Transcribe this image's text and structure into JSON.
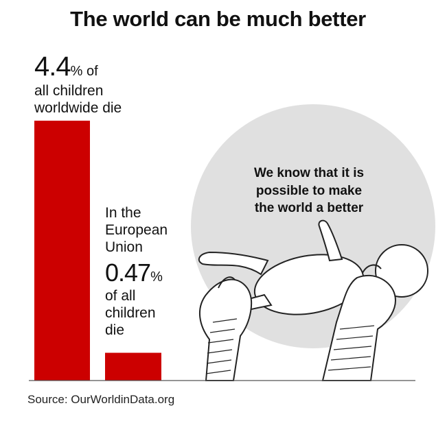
{
  "title": "The world can be much better",
  "source": "Source: OurWorldinData.org",
  "circle_text": [
    "We know that it is",
    "possible to make",
    "the world a better"
  ],
  "colors": {
    "bar": "#cc0000",
    "circle": "#e0e0e0",
    "text": "#111111"
  },
  "chart_data": {
    "type": "bar",
    "categories": [
      "all children worldwide",
      "In the European Union"
    ],
    "values": [
      4.4,
      0.47
    ],
    "unit": "%",
    "ylim": [
      0,
      4.4
    ],
    "grid": false,
    "labels": [
      {
        "value": "4.4",
        "unit": "% of",
        "lines": [
          "all children",
          "worldwide die"
        ]
      },
      {
        "prefix_lines": [
          "In the",
          "European",
          "Union"
        ],
        "value": "0.47",
        "unit": "%",
        "lines": [
          "of all",
          "children",
          "die"
        ]
      }
    ]
  }
}
